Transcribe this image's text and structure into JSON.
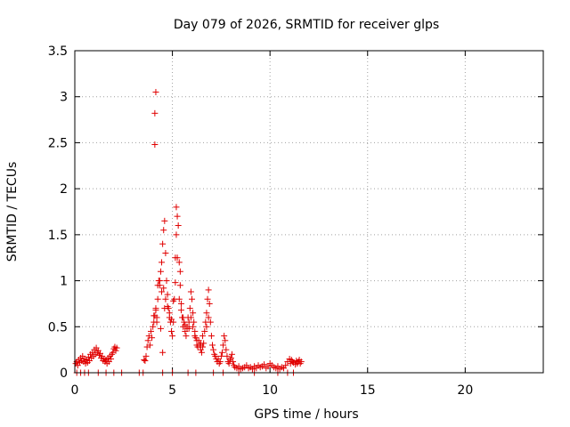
{
  "chart_data": {
    "type": "scatter",
    "title": "Day 079 of 2026, SRMTID for receiver glps",
    "xlabel": "GPS time / hours",
    "ylabel": "SRMTID / TECUs",
    "xlim": [
      0,
      24
    ],
    "ylim": [
      0,
      3.5
    ],
    "xticks": [
      0,
      5,
      10,
      15,
      20
    ],
    "yticks": [
      0,
      0.5,
      1,
      1.5,
      2,
      2.5,
      3,
      3.5
    ],
    "xtick_labels": [
      "0",
      "5",
      "10",
      "15",
      "20"
    ],
    "ytick_labels": [
      "0",
      "0.5",
      "1",
      "1.5",
      "2",
      "2.5",
      "3",
      "3.5"
    ],
    "grid": true,
    "marker": "+",
    "color": "#e00000",
    "series": [
      {
        "name": "SRMTID",
        "points": [
          [
            0.05,
            0.1
          ],
          [
            0.1,
            0.12
          ],
          [
            0.15,
            0.08
          ],
          [
            0.2,
            0.14
          ],
          [
            0.25,
            0.11
          ],
          [
            0.3,
            0.16
          ],
          [
            0.35,
            0.13
          ],
          [
            0.4,
            0.18
          ],
          [
            0.45,
            0.12
          ],
          [
            0.5,
            0.15
          ],
          [
            0.55,
            0.1
          ],
          [
            0.6,
            0.14
          ],
          [
            0.65,
            0.11
          ],
          [
            0.7,
            0.17
          ],
          [
            0.75,
            0.13
          ],
          [
            0.8,
            0.2
          ],
          [
            0.85,
            0.16
          ],
          [
            0.9,
            0.22
          ],
          [
            0.95,
            0.18
          ],
          [
            1.0,
            0.25
          ],
          [
            1.05,
            0.2
          ],
          [
            1.1,
            0.27
          ],
          [
            1.15,
            0.22
          ],
          [
            1.2,
            0.24
          ],
          [
            1.25,
            0.19
          ],
          [
            1.3,
            0.21
          ],
          [
            1.35,
            0.16
          ],
          [
            1.4,
            0.18
          ],
          [
            1.45,
            0.13
          ],
          [
            1.5,
            0.15
          ],
          [
            1.55,
            0.12
          ],
          [
            1.6,
            0.14
          ],
          [
            1.65,
            0.1
          ],
          [
            1.7,
            0.16
          ],
          [
            1.75,
            0.12
          ],
          [
            1.8,
            0.18
          ],
          [
            1.85,
            0.15
          ],
          [
            1.9,
            0.2
          ],
          [
            1.95,
            0.22
          ],
          [
            2.0,
            0.26
          ],
          [
            2.05,
            0.28
          ],
          [
            2.1,
            0.24
          ],
          [
            2.15,
            0.27
          ],
          [
            0.1,
            0.0
          ],
          [
            0.3,
            0.0
          ],
          [
            0.5,
            0.0
          ],
          [
            0.7,
            0.0
          ],
          [
            1.2,
            0.0
          ],
          [
            1.6,
            0.0
          ],
          [
            2.0,
            0.0
          ],
          [
            2.4,
            0.0
          ],
          [
            3.3,
            0.0
          ],
          [
            3.5,
            0.0
          ],
          [
            3.55,
            0.14
          ],
          [
            3.6,
            0.13
          ],
          [
            3.65,
            0.18
          ],
          [
            3.7,
            0.28
          ],
          [
            3.75,
            0.35
          ],
          [
            3.8,
            0.4
          ],
          [
            3.85,
            0.3
          ],
          [
            3.9,
            0.45
          ],
          [
            3.95,
            0.38
          ],
          [
            4.0,
            0.5
          ],
          [
            4.05,
            0.55
          ],
          [
            4.1,
            0.62
          ],
          [
            4.15,
            0.7
          ],
          [
            4.2,
            0.6
          ],
          [
            4.25,
            0.8
          ],
          [
            4.3,
            1.0
          ],
          [
            4.35,
            0.95
          ],
          [
            4.4,
            1.1
          ],
          [
            4.45,
            1.2
          ],
          [
            4.5,
            1.4
          ],
          [
            4.55,
            1.55
          ],
          [
            4.6,
            1.65
          ],
          [
            4.65,
            1.3
          ],
          [
            4.7,
            1.0
          ],
          [
            4.75,
            0.85
          ],
          [
            4.8,
            0.7
          ],
          [
            4.85,
            0.6
          ],
          [
            4.9,
            0.55
          ],
          [
            4.95,
            0.45
          ],
          [
            5.0,
            0.4
          ],
          [
            5.05,
            0.55
          ],
          [
            5.1,
            0.8
          ],
          [
            5.15,
            1.25
          ],
          [
            5.2,
            1.5
          ],
          [
            5.25,
            1.7
          ],
          [
            5.3,
            1.6
          ],
          [
            5.35,
            1.2
          ],
          [
            5.4,
            0.95
          ],
          [
            5.45,
            0.75
          ],
          [
            5.5,
            0.6
          ],
          [
            5.55,
            0.5
          ],
          [
            5.6,
            0.55
          ],
          [
            5.65,
            0.45
          ],
          [
            5.7,
            0.4
          ],
          [
            5.75,
            0.5
          ],
          [
            5.8,
            0.6
          ],
          [
            5.85,
            0.48
          ],
          [
            5.9,
            0.7
          ],
          [
            5.95,
            0.88
          ],
          [
            6.0,
            0.8
          ],
          [
            6.05,
            0.65
          ],
          [
            6.1,
            0.55
          ],
          [
            6.15,
            0.45
          ],
          [
            6.2,
            0.38
          ],
          [
            6.25,
            0.3
          ],
          [
            6.3,
            0.28
          ],
          [
            6.35,
            0.35
          ],
          [
            6.4,
            0.3
          ],
          [
            6.45,
            0.25
          ],
          [
            6.5,
            0.22
          ],
          [
            6.55,
            0.28
          ],
          [
            6.6,
            0.32
          ],
          [
            6.65,
            0.45
          ],
          [
            6.7,
            0.55
          ],
          [
            6.75,
            0.65
          ],
          [
            6.8,
            0.8
          ],
          [
            6.85,
            0.9
          ],
          [
            6.9,
            0.75
          ],
          [
            6.95,
            0.55
          ],
          [
            7.0,
            0.4
          ],
          [
            7.05,
            0.3
          ],
          [
            7.1,
            0.25
          ],
          [
            7.15,
            0.2
          ],
          [
            7.2,
            0.18
          ],
          [
            7.25,
            0.15
          ],
          [
            7.3,
            0.12
          ],
          [
            7.35,
            0.15
          ],
          [
            7.4,
            0.1
          ],
          [
            7.45,
            0.12
          ],
          [
            7.5,
            0.18
          ],
          [
            7.55,
            0.22
          ],
          [
            7.6,
            0.3
          ],
          [
            7.65,
            0.4
          ],
          [
            7.7,
            0.35
          ],
          [
            7.75,
            0.25
          ],
          [
            7.8,
            0.18
          ],
          [
            7.85,
            0.12
          ],
          [
            7.9,
            0.1
          ],
          [
            7.95,
            0.14
          ],
          [
            8.0,
            0.16
          ],
          [
            8.05,
            0.2
          ],
          [
            8.1,
            0.12
          ],
          [
            8.15,
            0.08
          ],
          [
            8.2,
            0.06
          ],
          [
            8.3,
            0.05
          ],
          [
            8.4,
            0.07
          ],
          [
            8.5,
            0.04
          ],
          [
            8.6,
            0.05
          ],
          [
            8.7,
            0.06
          ],
          [
            8.8,
            0.08
          ],
          [
            8.9,
            0.05
          ],
          [
            9.0,
            0.06
          ],
          [
            9.1,
            0.04
          ],
          [
            9.2,
            0.07
          ],
          [
            9.3,
            0.05
          ],
          [
            9.4,
            0.08
          ],
          [
            9.5,
            0.06
          ],
          [
            9.6,
            0.07
          ],
          [
            9.7,
            0.09
          ],
          [
            9.8,
            0.05
          ],
          [
            9.9,
            0.07
          ],
          [
            10.0,
            0.1
          ],
          [
            10.1,
            0.08
          ],
          [
            10.2,
            0.06
          ],
          [
            10.3,
            0.05
          ],
          [
            10.4,
            0.07
          ],
          [
            10.5,
            0.04
          ],
          [
            10.6,
            0.06
          ],
          [
            10.7,
            0.05
          ],
          [
            10.8,
            0.08
          ],
          [
            10.9,
            0.12
          ],
          [
            11.0,
            0.15
          ],
          [
            11.05,
            0.1
          ],
          [
            11.1,
            0.14
          ],
          [
            11.15,
            0.12
          ],
          [
            11.2,
            0.11
          ],
          [
            11.3,
            0.09
          ],
          [
            11.35,
            0.13
          ],
          [
            11.4,
            0.1
          ],
          [
            11.45,
            0.12
          ],
          [
            11.5,
            0.14
          ],
          [
            11.55,
            0.1
          ],
          [
            11.6,
            0.12
          ],
          [
            4.05,
            0.62
          ],
          [
            4.15,
            0.68
          ],
          [
            4.25,
            0.95
          ],
          [
            4.35,
            1.0
          ],
          [
            4.45,
            0.88
          ],
          [
            4.55,
            0.92
          ],
          [
            4.65,
            0.8
          ],
          [
            4.75,
            0.72
          ],
          [
            4.85,
            0.65
          ],
          [
            4.95,
            0.58
          ],
          [
            5.05,
            0.78
          ],
          [
            5.15,
            0.98
          ],
          [
            5.25,
            1.25
          ],
          [
            5.35,
            0.8
          ],
          [
            5.45,
            0.68
          ],
          [
            5.55,
            0.6
          ],
          [
            5.65,
            0.52
          ],
          [
            5.75,
            0.48
          ],
          [
            5.85,
            0.55
          ],
          [
            5.95,
            0.6
          ],
          [
            6.05,
            0.5
          ],
          [
            6.15,
            0.4
          ],
          [
            6.25,
            0.35
          ],
          [
            6.45,
            0.32
          ],
          [
            6.55,
            0.4
          ],
          [
            6.75,
            0.5
          ],
          [
            6.85,
            0.6
          ],
          [
            4.1,
            2.48
          ],
          [
            4.1,
            2.82
          ],
          [
            4.15,
            3.05
          ],
          [
            4.2,
            0.55
          ],
          [
            4.4,
            0.48
          ],
          [
            4.5,
            0.22
          ],
          [
            4.6,
            0.7
          ],
          [
            5.2,
            1.8
          ],
          [
            5.4,
            1.1
          ],
          [
            4.5,
            0.0
          ],
          [
            5.0,
            0.0
          ],
          [
            5.8,
            0.0
          ],
          [
            6.2,
            0.0
          ],
          [
            7.1,
            0.0
          ],
          [
            7.6,
            0.0
          ],
          [
            8.4,
            0.0
          ],
          [
            9.2,
            0.0
          ],
          [
            10.4,
            0.0
          ],
          [
            10.9,
            0.0
          ],
          [
            11.2,
            0.0
          ]
        ]
      }
    ]
  }
}
